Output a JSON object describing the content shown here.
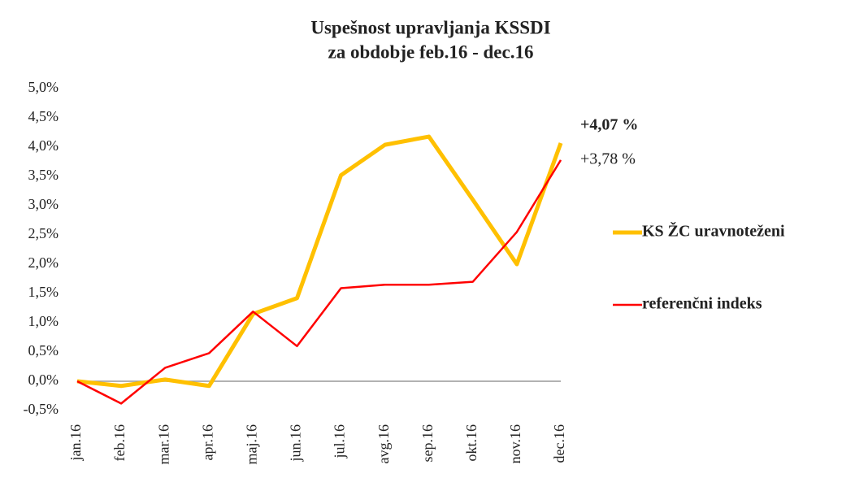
{
  "chart_data": {
    "type": "line",
    "title": [
      "Uspešnost upravljanja KSSDI",
      "za obdobje feb.16 - dec.16"
    ],
    "categories": [
      "jan.16",
      "feb.16",
      "mar.16",
      "apr.16",
      "maj.16",
      "jun.16",
      "jul.16",
      "avg.16",
      "sep.16",
      "okt.16",
      "nov.16",
      "dec.16"
    ],
    "series": [
      {
        "name": "KS ŽC uravnoteženi",
        "color": "#ffc000",
        "values": [
          0.0,
          -0.08,
          0.03,
          -0.08,
          1.15,
          1.42,
          3.52,
          4.04,
          4.18,
          3.1,
          2.0,
          4.07
        ]
      },
      {
        "name": "referenčni indeks",
        "color": "#ff0000",
        "values": [
          0.0,
          -0.38,
          0.23,
          0.48,
          1.19,
          0.6,
          1.59,
          1.65,
          1.65,
          1.7,
          2.55,
          3.78
        ]
      }
    ],
    "annotations": [
      "+4,07 %",
      "+3,78 %"
    ],
    "ylim": [
      -0.5,
      5.0
    ],
    "yticks": [
      {
        "value": -0.5,
        "label": "-0,5%"
      },
      {
        "value": 0,
        "label": "0,0%"
      },
      {
        "value": 0.5,
        "label": "0,5%"
      },
      {
        "value": 1.0,
        "label": "1,0%"
      },
      {
        "value": 1.5,
        "label": "1,5%"
      },
      {
        "value": 2.0,
        "label": "2,0%"
      },
      {
        "value": 2.5,
        "label": "2,5%"
      },
      {
        "value": 3.0,
        "label": "3,0%"
      },
      {
        "value": 3.5,
        "label": "3,5%"
      },
      {
        "value": 4.0,
        "label": "4,0%"
      },
      {
        "value": 4.5,
        "label": "4,5%"
      },
      {
        "value": 5.0,
        "label": "5,0%"
      }
    ],
    "grid": false
  }
}
